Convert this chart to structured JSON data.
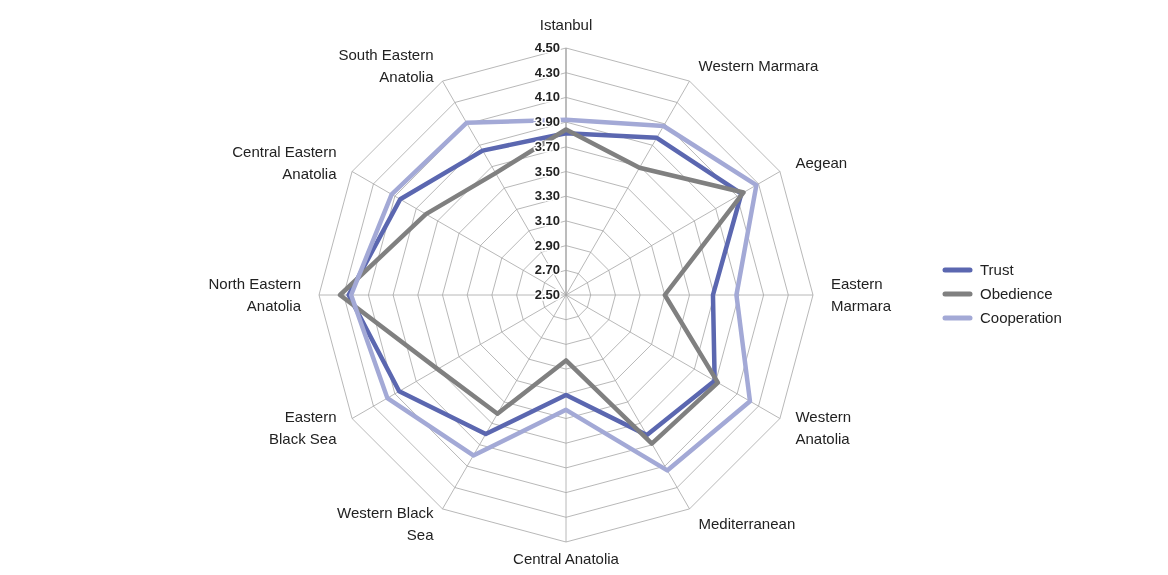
{
  "chart_data": {
    "type": "radar",
    "categories": [
      "Istanbul",
      "Western Marmara",
      "Aegean",
      "Eastern\nMarmara",
      "Western\nAnatolia",
      "Mediterranean",
      "Central Anatolia",
      "Western Black\nSea",
      "Eastern\nBlack Sea",
      "North Eastern\nAnatolia",
      "Central Eastern\nAnatolia",
      "South Eastern\nAnatolia"
    ],
    "series": [
      {
        "name": "Trust",
        "color": "#5b67b0",
        "values": [
          3.81,
          3.97,
          4.14,
          3.69,
          3.89,
          3.81,
          3.31,
          3.8,
          4.06,
          4.26,
          4.05,
          3.85
        ]
      },
      {
        "name": "Obedience",
        "color": "#808080",
        "values": [
          3.84,
          3.69,
          4.16,
          3.3,
          3.92,
          3.89,
          3.03,
          3.61,
          3.7,
          4.33,
          3.81,
          3.64
        ]
      },
      {
        "name": "Cooperation",
        "color": "#a3a9d6",
        "values": [
          3.92,
          4.08,
          4.28,
          3.88,
          4.22,
          4.14,
          3.43,
          4,
          4.17,
          4.24,
          4.13,
          4.11
        ]
      }
    ],
    "ylim": [
      2.5,
      4.5
    ],
    "yticks": [
      {
        "value": 2.5,
        "label": "2.50"
      },
      {
        "value": 2.7,
        "label": "2.70"
      },
      {
        "value": 2.9,
        "label": "2.90"
      },
      {
        "value": 3.1,
        "label": "3.10"
      },
      {
        "value": 3.3,
        "label": "3.30"
      },
      {
        "value": 3.5,
        "label": "3.50"
      },
      {
        "value": 3.7,
        "label": "3.70"
      },
      {
        "value": 3.9,
        "label": "3.90"
      },
      {
        "value": 4.1,
        "label": "4.10"
      },
      {
        "value": 4.3,
        "label": "4.30"
      },
      {
        "value": 4.5,
        "label": "4.50"
      }
    ],
    "grid": true,
    "legend": "right",
    "marker": "none",
    "line_style": "solid"
  }
}
